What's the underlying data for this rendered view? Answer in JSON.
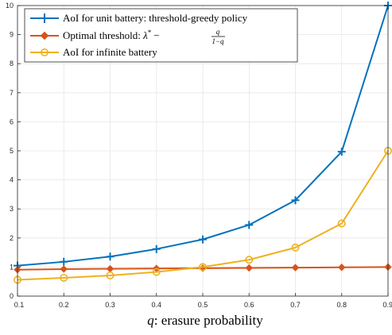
{
  "chart_data": {
    "type": "line",
    "x": [
      0.1,
      0.2,
      0.3,
      0.4,
      0.5,
      0.6,
      0.7,
      0.8,
      0.9
    ],
    "xlim": [
      0.1,
      0.9
    ],
    "ylim": [
      0,
      10
    ],
    "x_ticks": [
      "0.1",
      "0.2",
      "0.3",
      "0.4",
      "0.5",
      "0.6",
      "0.7",
      "0.8",
      "0.9"
    ],
    "y_ticks": [
      "0",
      "1",
      "2",
      "3",
      "4",
      "5",
      "6",
      "7",
      "8",
      "9",
      "10"
    ],
    "grid": true,
    "legend_position": "top-left",
    "xlabel": {
      "var": "q",
      "rest": ": erasure probability"
    },
    "ylabel": "",
    "title": "",
    "series": [
      {
        "name": "AoI for unit battery: threshold-greedy policy",
        "color": "#0072BD",
        "marker": "plus",
        "values": [
          1.05,
          1.18,
          1.36,
          1.62,
          1.95,
          2.45,
          3.3,
          4.97,
          10.0
        ]
      },
      {
        "name": "Optimal threshold: λ* − q/(1−q)",
        "legend": {
          "lead": "Optimal threshold: ",
          "lambda": "λ",
          "star": "*",
          "minus": "−",
          "num": "q",
          "den": "1−q"
        },
        "color": "#D95319",
        "marker": "diamond",
        "values": [
          0.91,
          0.93,
          0.94,
          0.95,
          0.96,
          0.97,
          0.98,
          0.99,
          1.0
        ]
      },
      {
        "name": "AoI for infinite battery",
        "color": "#EDB120",
        "marker": "circle",
        "values": [
          0.56,
          0.63,
          0.71,
          0.83,
          1.0,
          1.25,
          1.67,
          2.5,
          5.0
        ]
      }
    ]
  }
}
